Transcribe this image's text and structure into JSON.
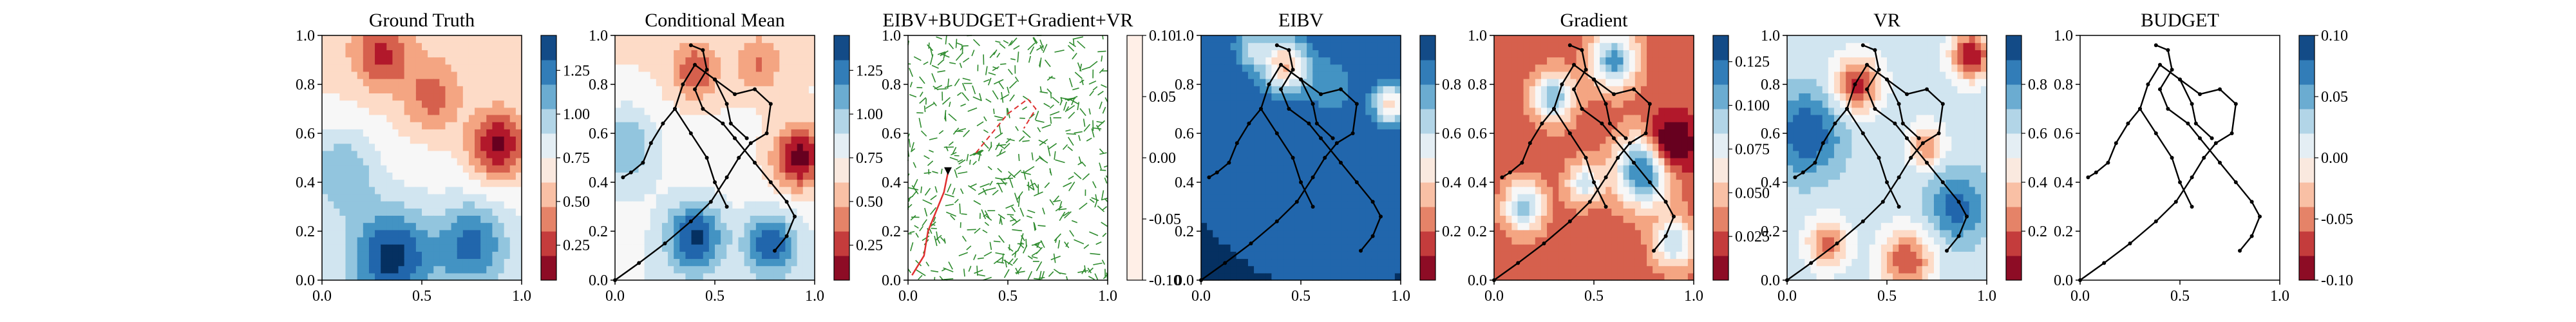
{
  "chart_data": [
    {
      "type": "heatmap",
      "title": "Ground Truth",
      "field": "truth",
      "cmap": "RdBu",
      "xlim": [
        0,
        1
      ],
      "ylim": [
        0,
        1
      ],
      "xticks": [
        "0.0",
        "0.5",
        "1.0"
      ],
      "yticks": [
        "0.0",
        "0.2",
        "0.4",
        "0.6",
        "0.8",
        "1.0"
      ],
      "colorbar": {
        "ticks": [
          "0.25",
          "0.50",
          "0.75",
          "1.00",
          "1.25"
        ],
        "tick_values": [
          0.25,
          0.5,
          0.75,
          1.0,
          1.25
        ],
        "range": [
          0.05,
          1.45
        ]
      },
      "path": false
    },
    {
      "type": "heatmap",
      "title": "Conditional Mean",
      "field": "mean",
      "cmap": "RdBu",
      "xlim": [
        0,
        1
      ],
      "ylim": [
        0,
        1
      ],
      "xticks": [
        "0.0",
        "0.5",
        "1.0"
      ],
      "yticks": [
        "0.0",
        "0.2",
        "0.4",
        "0.6",
        "0.8",
        "1.0"
      ],
      "colorbar": {
        "ticks": [
          "0.25",
          "0.50",
          "0.75",
          "1.00",
          "1.25"
        ],
        "tick_values": [
          0.25,
          0.5,
          0.75,
          1.0,
          1.25
        ],
        "range": [
          0.05,
          1.45
        ]
      },
      "path": true
    },
    {
      "type": "heatmap",
      "title": "EIBV+BUDGET+Gradient+VR",
      "field": "graph",
      "cmap": "Reds",
      "xlim": [
        0,
        1
      ],
      "ylim": [
        0,
        1
      ],
      "xticks": [
        "0.0",
        "0.5",
        "1.0"
      ],
      "yticks": [
        "0.0",
        "0.2",
        "0.4",
        "0.6",
        "0.8",
        "1.0"
      ],
      "colorbar": {
        "ticks": [
          "-0.10",
          "-0.05",
          "0.00",
          "0.05",
          "0.10"
        ],
        "tick_values": [
          -0.1,
          -0.05,
          0.0,
          0.05,
          0.1
        ],
        "range": [
          -0.1,
          0.1
        ]
      },
      "path": false
    },
    {
      "type": "heatmap",
      "title": "EIBV",
      "field": "eibv",
      "cmap": "RdBu",
      "xlim": [
        0,
        1
      ],
      "ylim": [
        0,
        1
      ],
      "xticks": [
        "0.0",
        "0.5",
        "1.0"
      ],
      "yticks": [
        "0.0",
        "0.2",
        "0.4",
        "0.6",
        "0.8",
        "1.0"
      ],
      "colorbar": {
        "ticks": [
          "0.2",
          "0.4",
          "0.6",
          "0.8"
        ],
        "tick_values": [
          0.2,
          0.4,
          0.6,
          0.8
        ],
        "range": [
          0.0,
          1.0
        ]
      },
      "path": true
    },
    {
      "type": "heatmap",
      "title": "Gradient",
      "field": "gradient",
      "cmap": "RdBu",
      "xlim": [
        0,
        1
      ],
      "ylim": [
        0,
        1
      ],
      "xticks": [
        "0.0",
        "0.5",
        "1.0"
      ],
      "yticks": [
        "0.0",
        "0.2",
        "0.4",
        "0.6",
        "0.8",
        "1.0"
      ],
      "colorbar": {
        "ticks": [
          "0.025",
          "0.050",
          "0.075",
          "0.100",
          "0.125"
        ],
        "tick_values": [
          0.025,
          0.05,
          0.075,
          0.1,
          0.125
        ],
        "range": [
          0.0,
          0.14
        ]
      },
      "path": true
    },
    {
      "type": "heatmap",
      "title": "VR",
      "field": "vr",
      "cmap": "RdBu",
      "xlim": [
        0,
        1
      ],
      "ylim": [
        0,
        1
      ],
      "xticks": [
        "0.0",
        "0.5",
        "1.0"
      ],
      "yticks": [
        "0.0",
        "0.2",
        "0.4",
        "0.6",
        "0.8",
        "1.0"
      ],
      "colorbar": {
        "ticks": [
          "0.2",
          "0.4",
          "0.6",
          "0.8"
        ],
        "tick_values": [
          0.2,
          0.4,
          0.6,
          0.8
        ],
        "range": [
          0.0,
          1.0
        ]
      },
      "path": true
    },
    {
      "type": "heatmap",
      "title": "BUDGET",
      "field": "none",
      "cmap": "RdBu",
      "xlim": [
        0,
        1
      ],
      "ylim": [
        0,
        1
      ],
      "xticks": [
        "0.0",
        "0.5",
        "1.0"
      ],
      "yticks": [
        "0.0",
        "0.2",
        "0.4",
        "0.6",
        "0.8",
        "1.0"
      ],
      "colorbar": {
        "ticks": [
          "-0.10",
          "-0.05",
          "0.00",
          "0.05",
          "0.10"
        ],
        "tick_values": [
          -0.1,
          -0.05,
          0.0,
          0.05,
          0.1
        ],
        "range": [
          -0.1,
          0.1
        ]
      },
      "path": true
    }
  ],
  "trajectory": {
    "line_color": "#000000",
    "points": [
      [
        0.0,
        0.0
      ],
      [
        0.12,
        0.07
      ],
      [
        0.25,
        0.15
      ],
      [
        0.38,
        0.24
      ],
      [
        0.48,
        0.32
      ],
      [
        0.56,
        0.42
      ],
      [
        0.62,
        0.5
      ],
      [
        0.68,
        0.56
      ],
      [
        0.76,
        0.6
      ],
      [
        0.78,
        0.72
      ],
      [
        0.7,
        0.78
      ],
      [
        0.6,
        0.76
      ],
      [
        0.5,
        0.82
      ],
      [
        0.4,
        0.88
      ],
      [
        0.34,
        0.8
      ],
      [
        0.3,
        0.7
      ],
      [
        0.24,
        0.64
      ],
      [
        0.18,
        0.56
      ],
      [
        0.14,
        0.48
      ],
      [
        0.08,
        0.44
      ],
      [
        0.04,
        0.42
      ]
    ],
    "branches": [
      [
        [
          0.38,
          0.96
        ],
        [
          0.44,
          0.94
        ],
        [
          0.46,
          0.86
        ],
        [
          0.4,
          0.78
        ],
        [
          0.44,
          0.7
        ],
        [
          0.54,
          0.64
        ],
        [
          0.6,
          0.58
        ],
        [
          0.7,
          0.48
        ],
        [
          0.78,
          0.4
        ],
        [
          0.86,
          0.32
        ],
        [
          0.9,
          0.26
        ],
        [
          0.86,
          0.18
        ],
        [
          0.8,
          0.12
        ]
      ],
      [
        [
          0.5,
          0.82
        ],
        [
          0.56,
          0.72
        ],
        [
          0.58,
          0.64
        ],
        [
          0.66,
          0.58
        ]
      ],
      [
        [
          0.3,
          0.7
        ],
        [
          0.38,
          0.6
        ],
        [
          0.46,
          0.5
        ],
        [
          0.5,
          0.4
        ],
        [
          0.56,
          0.3
        ]
      ]
    ]
  },
  "graph_panel": {
    "edge_color": "#2e8b2e",
    "route_color": "#e03030",
    "route": [
      [
        0.02,
        0.02
      ],
      [
        0.08,
        0.1
      ],
      [
        0.1,
        0.2
      ],
      [
        0.14,
        0.28
      ],
      [
        0.18,
        0.36
      ],
      [
        0.2,
        0.44
      ]
    ],
    "route2": [
      [
        0.34,
        0.52
      ],
      [
        0.42,
        0.6
      ],
      [
        0.5,
        0.68
      ],
      [
        0.6,
        0.74
      ],
      [
        0.64,
        0.7
      ],
      [
        0.58,
        0.62
      ]
    ]
  }
}
